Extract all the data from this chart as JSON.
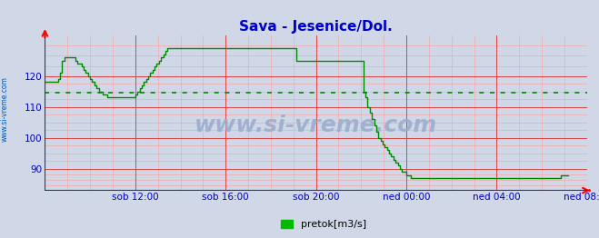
{
  "title": "Sava - Jesenice/Dol.",
  "title_color": "#0000cc",
  "title_fontsize": 11,
  "ylabel_text": "www.si-vreme.com",
  "ylabel_color": "#0055aa",
  "legend_label": "pretok[m3/s]",
  "legend_color": "#00bb00",
  "bg_color": "#d0d8e8",
  "plot_bg_color": "#d0d8e8",
  "line_color": "#008800",
  "avg_line_color": "#008800",
  "avg_value": 114.5,
  "x_axis_color": "#2222cc",
  "grid_color_major": "#dd4444",
  "grid_color_minor": "#f0aaaa",
  "tick_color": "#0000bb",
  "tick_fontsize": 7.5,
  "xlim": [
    0,
    252
  ],
  "ylim": [
    83,
    133
  ],
  "yticks": [
    90,
    100,
    110,
    120
  ],
  "xtick_positions": [
    42,
    84,
    126,
    168,
    210,
    252
  ],
  "xtick_labels": [
    "sob 12:00",
    "sob 16:00",
    "sob 20:00",
    "ned 00:00",
    "ned 04:00",
    "ned 08:00"
  ],
  "watermark": "www.si-vreme.com",
  "watermark_color": "#9aabcc",
  "watermark_fontsize": 18,
  "flow_data": [
    118,
    118,
    118,
    118,
    118,
    118,
    119,
    121,
    125,
    126,
    126,
    126,
    126,
    126,
    125,
    124,
    124,
    123,
    122,
    121,
    120,
    119,
    118,
    117,
    116,
    115,
    115,
    114,
    114,
    113,
    113,
    113,
    113,
    113,
    113,
    113,
    113,
    113,
    113,
    113,
    113,
    113,
    114,
    115,
    116,
    117,
    118,
    119,
    120,
    121,
    122,
    123,
    124,
    125,
    126,
    127,
    128,
    129,
    129,
    129,
    129,
    129,
    129,
    129,
    129,
    129,
    129,
    129,
    129,
    129,
    129,
    129,
    129,
    129,
    129,
    129,
    129,
    129,
    129,
    129,
    129,
    129,
    129,
    129,
    129,
    129,
    129,
    129,
    129,
    129,
    129,
    129,
    129,
    129,
    129,
    129,
    129,
    129,
    129,
    129,
    129,
    129,
    129,
    129,
    129,
    129,
    129,
    129,
    129,
    129,
    129,
    129,
    129,
    129,
    129,
    129,
    129,
    125,
    125,
    125,
    125,
    125,
    125,
    125,
    125,
    125,
    125,
    125,
    125,
    125,
    125,
    125,
    125,
    125,
    125,
    125,
    125,
    125,
    125,
    125,
    125,
    125,
    125,
    125,
    125,
    125,
    125,
    125,
    115,
    113,
    110,
    108,
    106,
    104,
    102,
    100,
    99,
    98,
    97,
    96,
    95,
    94,
    93,
    92,
    91,
    90,
    89,
    89,
    88,
    88,
    87,
    87,
    87,
    87,
    87,
    87,
    87,
    87,
    87,
    87,
    87,
    87,
    87,
    87,
    87,
    87,
    87,
    87,
    87,
    87,
    87,
    87,
    87,
    87,
    87,
    87,
    87,
    87,
    87,
    87,
    87,
    87,
    87,
    87,
    87,
    87,
    87,
    87,
    87,
    87,
    87,
    87,
    87,
    87,
    87,
    87,
    87,
    87,
    87,
    87,
    87,
    87,
    87,
    87,
    87,
    87,
    87,
    87,
    87,
    87,
    87,
    87,
    87,
    87,
    87,
    87,
    87,
    87,
    87,
    87,
    88,
    88,
    88,
    88
  ]
}
